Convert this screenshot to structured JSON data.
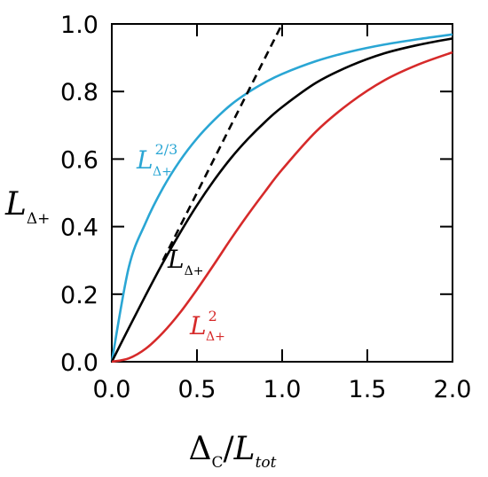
{
  "chart_data": {
    "type": "line",
    "xlim": [
      0.0,
      2.0
    ],
    "ylim": [
      0.0,
      1.0
    ],
    "xticks": [
      "0.0",
      "0.5",
      "1.0",
      "1.5",
      "2.0"
    ],
    "yticks": [
      "0.0",
      "0.2",
      "0.4",
      "0.6",
      "0.8",
      "1.0"
    ],
    "xlabel": {
      "main": "Δ",
      "main_sub": "C",
      "sep": "/",
      "denom": "L",
      "denom_sub": "tot"
    },
    "ylabel": {
      "main": "L",
      "sub": "Δ+"
    },
    "grid": false,
    "series": [
      {
        "label_main": "L",
        "label_sub": "Δ+",
        "label_sup": "2/3",
        "color": "#2aa6d4",
        "x": [
          0.0,
          0.1,
          0.2,
          0.3,
          0.4,
          0.5,
          0.6,
          0.7,
          0.8,
          0.9,
          1.0,
          1.2,
          1.4,
          1.6,
          1.8,
          2.0
        ],
        "y": [
          0.0,
          0.28,
          0.413,
          0.514,
          0.595,
          0.661,
          0.715,
          0.761,
          0.797,
          0.827,
          0.852,
          0.89,
          0.918,
          0.939,
          0.955,
          0.969
        ]
      },
      {
        "label_main": "L",
        "label_sub": "Δ+",
        "label_sup": "",
        "color": "#000000",
        "x": [
          0.0,
          0.1,
          0.2,
          0.3,
          0.4,
          0.5,
          0.6,
          0.7,
          0.8,
          0.9,
          1.0,
          1.2,
          1.4,
          1.6,
          1.8,
          2.0
        ],
        "y": [
          0.0,
          0.1,
          0.198,
          0.293,
          0.381,
          0.463,
          0.537,
          0.603,
          0.66,
          0.71,
          0.754,
          0.826,
          0.876,
          0.913,
          0.938,
          0.957
        ]
      },
      {
        "label_main": "L",
        "label_sub": "Δ+",
        "label_sup": "2",
        "color": "#d62a2a",
        "x": [
          0.0,
          0.1,
          0.2,
          0.3,
          0.4,
          0.5,
          0.6,
          0.7,
          0.8,
          0.9,
          1.0,
          1.2,
          1.4,
          1.6,
          1.8,
          2.0
        ],
        "y": [
          0.0,
          0.01,
          0.039,
          0.086,
          0.145,
          0.214,
          0.288,
          0.364,
          0.436,
          0.504,
          0.569,
          0.682,
          0.767,
          0.833,
          0.88,
          0.916
        ]
      }
    ],
    "reference_line": {
      "style": "dashed",
      "color": "#000000",
      "x": [
        0.3,
        1.0
      ],
      "y": [
        0.3,
        1.0
      ]
    }
  }
}
